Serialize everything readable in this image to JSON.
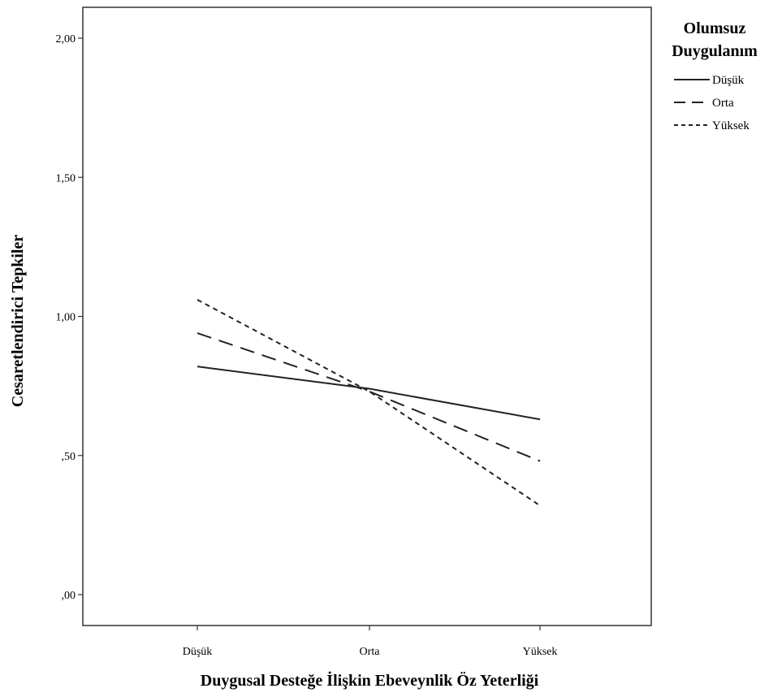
{
  "chart_data": {
    "type": "line",
    "title": "",
    "xlabel": "Duygusal Desteğe İlişkin Ebeveynlik Öz Yeterliği",
    "ylabel": "Cesaretlendirici Tepkiler",
    "categories": [
      "Düşük",
      "Orta",
      "Yüksek"
    ],
    "ylim": [
      -0.1,
      2.13
    ],
    "yticks": [
      0.0,
      0.5,
      1.0,
      1.5,
      2.0
    ],
    "ytick_labels": [
      ",00",
      ",50",
      "1,00",
      "1,50",
      "2,00"
    ],
    "grid": false,
    "legend": {
      "title_lines": [
        "Olumsuz",
        "Duygulanım"
      ],
      "placement": "top-right"
    },
    "series": [
      {
        "name": "Düşük",
        "style": "solid",
        "values": [
          0.82,
          0.74,
          0.63
        ]
      },
      {
        "name": "Orta",
        "style": "dashed",
        "values": [
          0.94,
          0.73,
          0.48
        ]
      },
      {
        "name": "Yüksek",
        "style": "dotted",
        "values": [
          1.06,
          0.73,
          0.32
        ]
      }
    ]
  }
}
